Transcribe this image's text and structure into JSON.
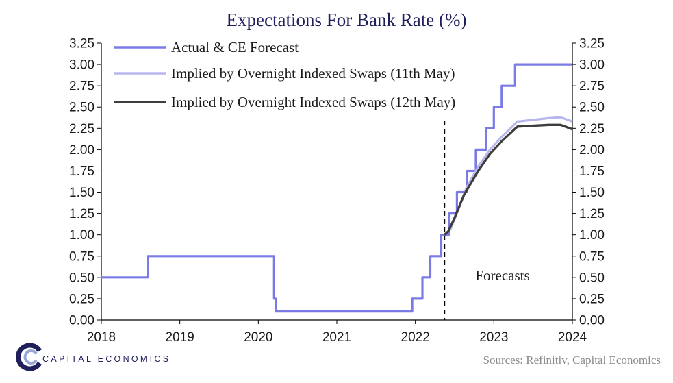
{
  "chart_data": {
    "type": "line",
    "title": "Expectations For Bank Rate (%)",
    "xlabel": "",
    "ylabel": "",
    "xlim": [
      2018,
      2024
    ],
    "ylim": [
      0,
      3.25
    ],
    "x_ticks": [
      "2018",
      "2019",
      "2020",
      "2021",
      "2022",
      "2023",
      "2024"
    ],
    "y_ticks": [
      "0.00",
      "0.25",
      "0.50",
      "0.75",
      "1.00",
      "1.25",
      "1.50",
      "1.75",
      "2.00",
      "2.25",
      "2.50",
      "2.75",
      "3.00",
      "3.25"
    ],
    "y_tick_values": [
      0,
      0.25,
      0.5,
      0.75,
      1.0,
      1.25,
      1.5,
      1.75,
      2.0,
      2.25,
      2.5,
      2.75,
      3.0,
      3.25
    ],
    "y_axis_sides": "left and right",
    "grid": false,
    "legend_placement": "top-left",
    "forecast_marker_x": 2022.37,
    "annotation": "Forecasts",
    "series": [
      {
        "name": "Actual & CE Forecast",
        "color": "#7b7be6",
        "style": "step",
        "x": [
          2018.0,
          2018.59,
          2018.59,
          2020.2,
          2020.2,
          2020.22,
          2020.22,
          2021.96,
          2021.96,
          2022.09,
          2022.09,
          2022.19,
          2022.19,
          2022.33,
          2022.33,
          2022.43,
          2022.43,
          2022.53,
          2022.53,
          2022.66,
          2022.66,
          2022.77,
          2022.77,
          2022.9,
          2022.9,
          2023.0,
          2023.0,
          2023.1,
          2023.1,
          2023.27,
          2023.27,
          2023.45,
          2023.45,
          2023.6,
          2023.6,
          2024.0
        ],
        "y": [
          0.5,
          0.5,
          0.75,
          0.75,
          0.25,
          0.25,
          0.1,
          0.1,
          0.25,
          0.25,
          0.5,
          0.5,
          0.75,
          0.75,
          1.0,
          1.0,
          1.25,
          1.25,
          1.5,
          1.5,
          1.75,
          1.75,
          2.0,
          2.0,
          2.25,
          2.25,
          2.5,
          2.5,
          2.75,
          2.75,
          3.0,
          3.0,
          3.0,
          3.0,
          3.0,
          3.0
        ]
      },
      {
        "name": "Implied by Overnight Indexed Swaps (11th May)",
        "color": "#b7b7ee",
        "style": "line",
        "x": [
          2022.37,
          2022.45,
          2022.55,
          2022.65,
          2022.8,
          2022.95,
          2023.1,
          2023.3,
          2023.5,
          2023.7,
          2023.85,
          2024.0
        ],
        "y": [
          1.0,
          1.07,
          1.3,
          1.55,
          1.8,
          2.0,
          2.15,
          2.33,
          2.35,
          2.37,
          2.38,
          2.33
        ]
      },
      {
        "name": "Implied by Overnight Indexed Swaps (12th May)",
        "color": "#3e3e3e",
        "style": "line",
        "x": [
          2022.37,
          2022.42,
          2022.5,
          2022.62,
          2022.8,
          2022.95,
          2023.1,
          2023.3,
          2023.5,
          2023.7,
          2023.85,
          2024.0
        ],
        "y": [
          1.0,
          1.04,
          1.2,
          1.47,
          1.75,
          1.95,
          2.1,
          2.27,
          2.28,
          2.29,
          2.29,
          2.24
        ]
      }
    ]
  },
  "footer": {
    "brand": "CAPITAL ECONOMICS",
    "source": "Sources:  Refinitiv,  Capital Economics"
  },
  "colors": {
    "title": "#1f1f5c",
    "brand_blue": "#1f1f5c",
    "source_gray": "#8a8a8a"
  }
}
